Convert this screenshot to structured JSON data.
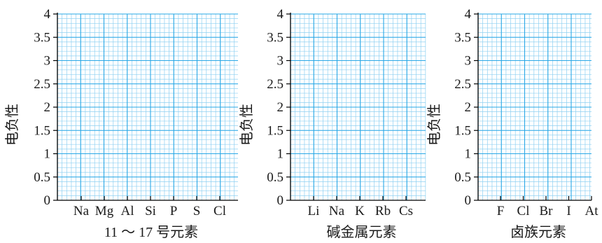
{
  "colors": {
    "grid_minor": "#8fd0f2",
    "grid_major": "#2aa8e6",
    "axis": "#000000",
    "text": "#1a1a1a"
  },
  "chart_data": [
    {
      "type": "scatter",
      "title": "",
      "xlabel": "11 ～ 17 号元素",
      "ylabel": "电负性",
      "categories": [
        "Na",
        "Mg",
        "Al",
        "Si",
        "P",
        "S",
        "Cl"
      ],
      "yticks": [
        "0",
        "0.5",
        "1",
        "1.5",
        "2",
        "2.5",
        "3",
        "3.5",
        "4"
      ],
      "ylim": [
        0,
        4
      ],
      "grid": true,
      "series": []
    },
    {
      "type": "scatter",
      "title": "",
      "xlabel": "碱金属元素",
      "ylabel": "电负性",
      "categories": [
        "Li",
        "Na",
        "K",
        "Rb",
        "Cs"
      ],
      "yticks": [
        "0",
        "0.5",
        "1",
        "1.5",
        "2",
        "2.5",
        "3",
        "3.5",
        "4"
      ],
      "ylim": [
        0,
        4
      ],
      "grid": true,
      "series": []
    },
    {
      "type": "scatter",
      "title": "",
      "xlabel": "卤族元素",
      "ylabel": "电负性",
      "categories": [
        "F",
        "Cl",
        "Br",
        "I",
        "At"
      ],
      "yticks": [
        "0",
        "0.5",
        "1",
        "1.5",
        "2",
        "2.5",
        "3",
        "3.5",
        "4"
      ],
      "ylim": [
        0,
        4
      ],
      "grid": true,
      "series": []
    }
  ]
}
